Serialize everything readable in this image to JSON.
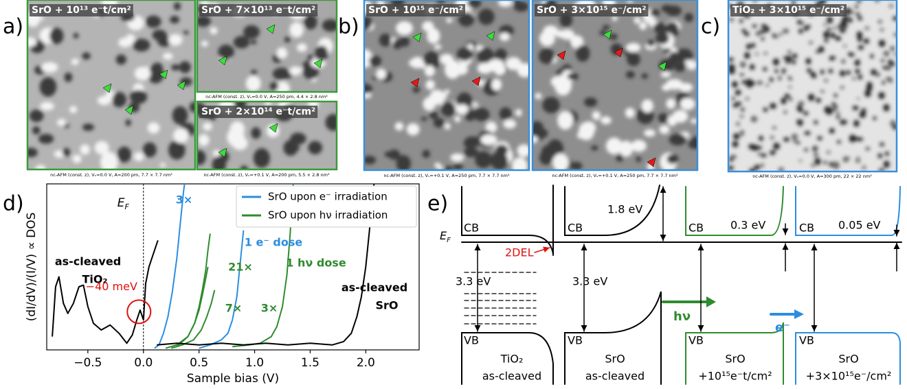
{
  "panels": {
    "a": {
      "label": "a)",
      "images": [
        {
          "title": "SrO + 10¹³ e⁻t/cm²",
          "caption": "nc-AFM (const. z), Vₛ=0.0 V, A=200 pm, 7.7 × 7.7 nm²"
        },
        {
          "title": "SrO + 7×10¹³ e⁻t/cm²",
          "caption": "nc-AFM (const. z), Vₛ=0.0 V, A=250 pm, 4.4 × 2.8 nm²"
        },
        {
          "title": "SrO + 2×10¹⁴ e⁻t/cm²",
          "caption": "nc-AFM (const. z), Vₛ=+0.1 V, A=200 pm, 5.5 × 2.8 nm²"
        }
      ]
    },
    "b": {
      "label": "b)",
      "images": [
        {
          "title": "SrO + 10¹⁵ e⁻/cm²",
          "caption": "nc-AFM (const. z), Vₛ=+0.1 V, A=250 pm, 7.7 × 7.7 nm²"
        },
        {
          "title": "SrO + 3×10¹⁵ e⁻/cm²",
          "caption": "nc-AFM (const. z), Vₛ=+0.1 V, A=250 pm, 7.7 × 7.7 nm²"
        }
      ]
    },
    "c": {
      "label": "c)",
      "images": [
        {
          "title": "TiO₂ + 3×10¹⁵ e⁻/cm²",
          "caption": "nc-AFM (const. z), Vₛ=0.0 V, A=300 pm, 22 × 22 nm²"
        }
      ]
    },
    "d": {
      "label": "d)"
    },
    "e": {
      "label": "e)",
      "ef": "E",
      "ef_sub": "F",
      "label_2del": "2DEL",
      "label_hv": "hν",
      "label_e": "e⁻",
      "columns": [
        {
          "cb": "CB",
          "vb": "VB",
          "name": "TiO₂",
          "desc": "as-cleaved",
          "gap": "3.3 eV"
        },
        {
          "cb": "CB",
          "vb": "VB",
          "name": "SrO",
          "desc": "as-cleaved",
          "gap": "3.3 eV",
          "offset": "1.8 eV"
        },
        {
          "cb": "CB",
          "vb": "VB",
          "name": "SrO",
          "desc": "+10¹⁵e⁻t/cm²",
          "offset": "0.3 eV"
        },
        {
          "cb": "CB",
          "vb": "VB",
          "name": "SrO",
          "desc": "+3×10¹⁵e⁻/cm²",
          "offset": "0.05 eV"
        }
      ]
    }
  },
  "chart_data": {
    "type": "line",
    "xlabel": "Sample bias (V)",
    "ylabel": "(dI/dV)/(I/V) ∝ DOS",
    "xlim": [
      -0.87,
      2.48
    ],
    "ylim": [
      0,
      10
    ],
    "xticks": [
      {
        "value": -0.5,
        "label": "−0.5"
      },
      {
        "value": 0,
        "label": "0.0"
      },
      0.5,
      {
        "value": 1,
        "label": "1.0"
      },
      1.5,
      {
        "value": 2,
        "label": "2.0"
      }
    ],
    "ef_x": 0,
    "ef_label": "E",
    "ef_sub": "F",
    "marker": {
      "x": -0.04,
      "y": 2.3,
      "label": "−40 meV",
      "color": "#e01010"
    },
    "legend_position": "upper right",
    "legend": [
      {
        "label": "SrO upon e⁻ irradiation",
        "color": "#2b8de0"
      },
      {
        "label": "SrO upon hν irradiation",
        "color": "#2e8b2e"
      }
    ],
    "series": [
      {
        "labels": [
          "as-cleaved",
          "TiO₂"
        ],
        "color": "#000000",
        "x": [
          -0.82,
          -0.79,
          -0.76,
          -0.72,
          -0.68,
          -0.63,
          -0.58,
          -0.54,
          -0.5,
          -0.45,
          -0.38,
          -0.3,
          -0.22,
          -0.15,
          -0.1,
          -0.06,
          -0.03,
          0.0,
          0.02,
          0.05,
          0.1,
          0.13
        ],
        "values": [
          0.8,
          3.8,
          4.4,
          2.8,
          2.2,
          2.8,
          3.8,
          3.9,
          2.6,
          1.6,
          1.2,
          1.5,
          1.0,
          0.4,
          0.9,
          1.8,
          2.4,
          1.8,
          4.0,
          5.0,
          6.0,
          6.6
        ]
      },
      {
        "labels": [
          "3×"
        ],
        "color": "#2b8de0",
        "x": [
          0.1,
          0.14,
          0.18,
          0.22,
          0.26,
          0.3,
          0.33,
          0.36,
          0.38
        ],
        "values": [
          0.1,
          0.3,
          1.0,
          2.0,
          3.5,
          5.5,
          7.5,
          9.5,
          10.5
        ]
      },
      {
        "labels": [
          "1 e⁻ dose"
        ],
        "color": "#2b8de0",
        "x": [
          0.5,
          0.6,
          0.7,
          0.76,
          0.8,
          0.84,
          0.87,
          0.9
        ],
        "values": [
          0.1,
          0.3,
          0.6,
          1.0,
          1.8,
          3.2,
          5.2,
          7.2
        ]
      },
      {
        "labels": [
          "3×"
        ],
        "color": "#2e8b2e",
        "x": [
          0.25,
          0.35,
          0.45,
          0.52,
          0.57,
          0.61,
          0.64
        ],
        "values": [
          0.1,
          0.3,
          0.6,
          1.2,
          2.0,
          2.8,
          3.6
        ]
      },
      {
        "labels": [
          "7×"
        ],
        "color": "#2e8b2e",
        "x": [
          0.2,
          0.3,
          0.4,
          0.46,
          0.5,
          0.53,
          0.56,
          0.58
        ],
        "values": [
          0.1,
          0.3,
          0.8,
          1.6,
          2.4,
          3.3,
          4.3,
          5.0
        ]
      },
      {
        "labels": [
          "21×"
        ],
        "color": "#2e8b2e",
        "x": [
          0.3,
          0.4,
          0.46,
          0.5,
          0.53,
          0.56,
          0.58,
          0.6
        ],
        "values": [
          0.2,
          0.8,
          1.6,
          2.6,
          3.6,
          4.8,
          6.0,
          7.0
        ]
      },
      {
        "labels": [
          "1 hν dose"
        ],
        "color": "#2e8b2e",
        "x": [
          0.8,
          0.95,
          1.05,
          1.15,
          1.2,
          1.25,
          1.29,
          1.32,
          1.35
        ],
        "values": [
          0.2,
          0.3,
          0.4,
          0.8,
          1.4,
          2.6,
          4.5,
          7.0,
          10.3
        ]
      },
      {
        "labels": [
          "as-cleaved",
          "SrO"
        ],
        "color": "#000000",
        "x": [
          0.12,
          0.3,
          0.5,
          0.7,
          0.9,
          1.1,
          1.3,
          1.5,
          1.7,
          1.8,
          1.87,
          1.92,
          1.96,
          2.0,
          2.03,
          2.06,
          2.08
        ],
        "values": [
          0.3,
          0.4,
          0.3,
          0.4,
          0.3,
          0.4,
          0.3,
          0.4,
          0.3,
          0.5,
          1.0,
          2.0,
          3.2,
          5.0,
          7.0,
          9.0,
          10.4
        ]
      }
    ]
  }
}
